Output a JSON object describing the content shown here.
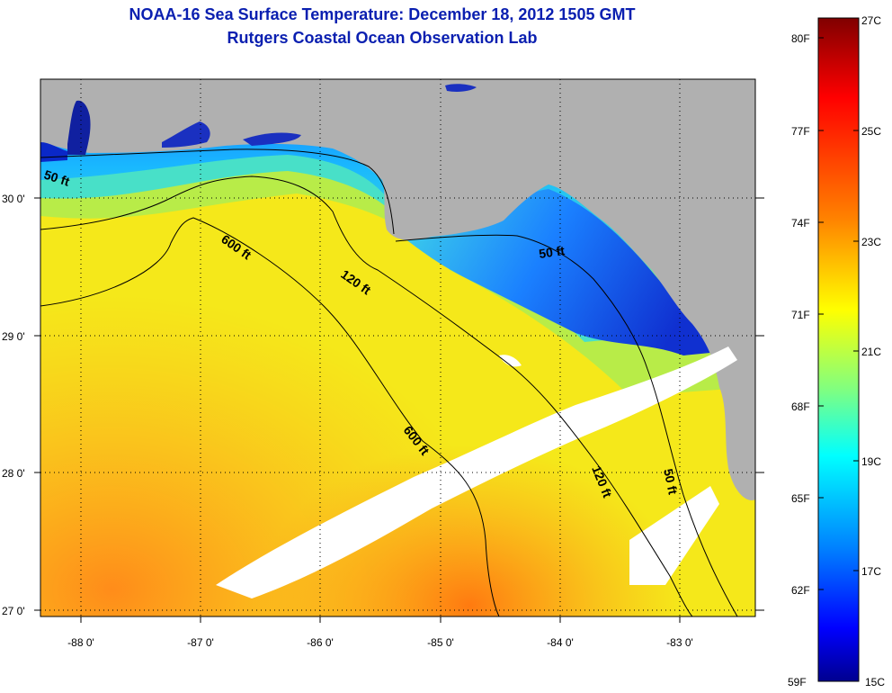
{
  "title": "NOAA-16 Sea Surface Temperature:  December 18, 2012 1505 GMT",
  "subtitle": "Rutgers Coastal Ocean Observation Lab",
  "latitude_labels": [
    "30 0'",
    "29 0'",
    "28 0'",
    "27 0'"
  ],
  "longitude_labels": [
    "-88 0'",
    "-87 0'",
    "-86 0'",
    "-85 0'",
    "-84 0'",
    "-83 0'"
  ],
  "depth_contours": [
    {
      "label": "50 ft"
    },
    {
      "label": "600 ft"
    },
    {
      "label": "120 ft"
    },
    {
      "label": "50 ft"
    },
    {
      "label": "600 ft"
    },
    {
      "label": "120 ft"
    },
    {
      "label": "50 ft"
    }
  ],
  "colorbar": {
    "fahrenheit_labels": [
      "80F",
      "77F",
      "74F",
      "71F",
      "68F",
      "65F",
      "62F",
      "59F"
    ],
    "celsius_labels": [
      "27C",
      "25C",
      "23C",
      "21C",
      "19C",
      "17C",
      "15C"
    ],
    "colors": [
      "#800000",
      "#ff0000",
      "#ff8000",
      "#ffff00",
      "#80ff80",
      "#00ffff",
      "#0080ff",
      "#0000ff",
      "#00008f"
    ]
  },
  "colors": {
    "title": "#0a1fb0",
    "land": "#b0b0b0",
    "cloud": "#ffffff"
  }
}
